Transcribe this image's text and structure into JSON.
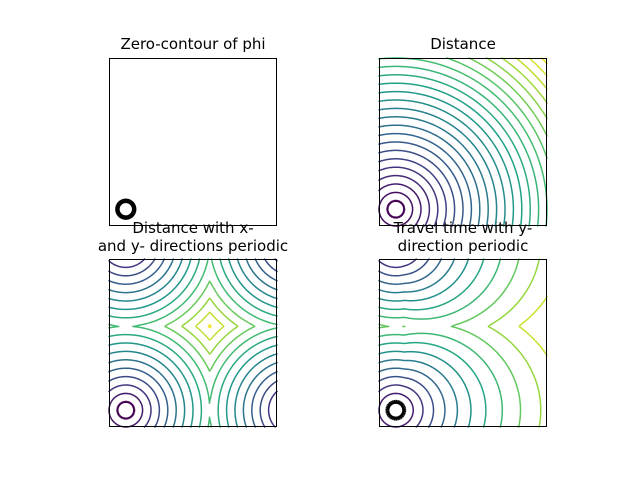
{
  "chart_data": [
    {
      "type": "contour",
      "title": "Zero-contour of phi",
      "domain": [
        -1,
        1
      ],
      "circle": {
        "center": [
          -0.8,
          -0.8
        ],
        "radius": 0.1
      },
      "contour_levels": [
        0
      ],
      "field": "phi",
      "color": "#000000"
    },
    {
      "type": "contour",
      "title": "Distance",
      "domain": [
        -1,
        1
      ],
      "circle": {
        "center": [
          -0.8,
          -0.8
        ],
        "radius": 0.1
      },
      "field": "distance",
      "colormap": "viridis",
      "level_step": 0.1
    },
    {
      "type": "contour",
      "title_lines": [
        "Distance with x-",
        "and y- directions periodic"
      ],
      "domain": [
        -1,
        1
      ],
      "circle": {
        "center": [
          -0.8,
          -0.8
        ],
        "radius": 0.1
      },
      "field": "distance_periodic_xy",
      "colormap": "viridis",
      "level_step": 0.1
    },
    {
      "type": "contour",
      "title_lines": [
        "Travel time with y-",
        "direction periodic"
      ],
      "domain": [
        -1,
        1
      ],
      "circle": {
        "center": [
          -0.8,
          -0.8
        ],
        "radius": 0.1
      },
      "field": "travel_time_periodic_y",
      "colormap": "viridis",
      "level_step": 0.1
    }
  ],
  "colors": {
    "viridis": [
      "#440154",
      "#46317e",
      "#365a8c",
      "#277e8e",
      "#1fa187",
      "#4ac16d",
      "#a0da39",
      "#fde725"
    ],
    "frame": "#000000"
  }
}
